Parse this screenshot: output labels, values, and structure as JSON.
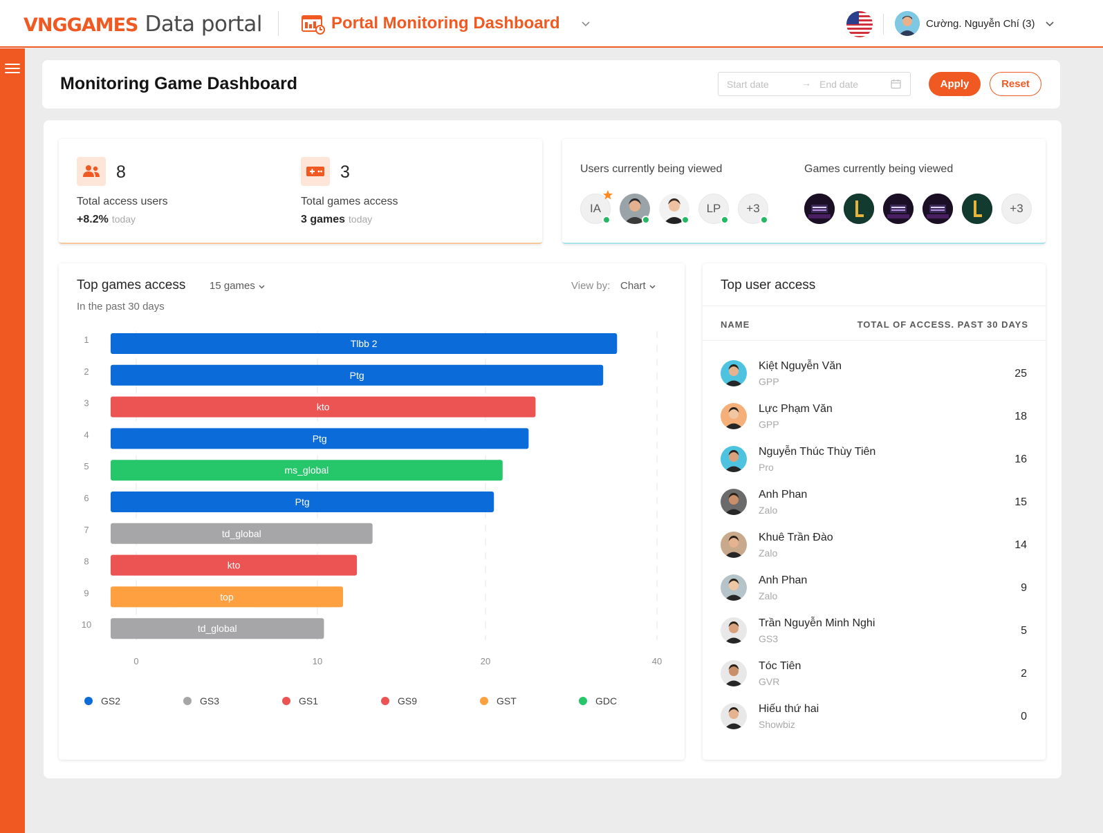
{
  "header": {
    "brand_logo": "VNGGAMES",
    "brand_sub": "Data portal",
    "dashboard_title": "Portal Monitoring Dashboard",
    "user_name": "Cường. Nguyễn Chí (3)"
  },
  "page": {
    "title": "Monitoring Game Dashboard",
    "date_start_placeholder": "Start date",
    "date_end_placeholder": "End date",
    "apply_label": "Apply",
    "reset_label": "Reset"
  },
  "stats": {
    "users": {
      "value": "8",
      "label": "Total access users",
      "sub": "+8.2%",
      "sub_muted": "today"
    },
    "games": {
      "value": "3",
      "label": "Total games access",
      "sub": "3 games",
      "sub_muted": "today"
    }
  },
  "viewing": {
    "users_label": "Users currently being viewed",
    "games_label": "Games currently being viewed",
    "users": [
      {
        "type": "text",
        "text": "IA",
        "online": true,
        "star": true
      },
      {
        "type": "photo",
        "online": true
      },
      {
        "type": "photo",
        "online": true
      },
      {
        "type": "text",
        "text": "LP",
        "online": true
      },
      {
        "type": "text",
        "text": "+3",
        "online": true
      }
    ],
    "games": [
      {
        "type": "game"
      },
      {
        "type": "game-green"
      },
      {
        "type": "game"
      },
      {
        "type": "game"
      },
      {
        "type": "game-green"
      },
      {
        "type": "more",
        "text": "+3"
      }
    ]
  },
  "top_games": {
    "title": "Top games access",
    "filter": "15 games",
    "subtitle": "In the past 30 days",
    "viewby_label": "View by:",
    "viewby_value": "Chart"
  },
  "chart_data": {
    "type": "bar",
    "orientation": "horizontal",
    "categories": [
      "1",
      "2",
      "3",
      "4",
      "5",
      "6",
      "7",
      "8",
      "9",
      "10"
    ],
    "bar_labels": [
      "Tlbb 2",
      "Ptg",
      "kto",
      "Ptg",
      "ms_global",
      "Ptg",
      "td_global",
      "kto",
      "top",
      "td_global"
    ],
    "values": [
      27.7,
      26.9,
      23.0,
      22.6,
      21.1,
      20.6,
      13.6,
      12.7,
      11.9,
      10.8
    ],
    "groups": [
      "GS2",
      "GS2",
      "GS9",
      "GS2",
      "GDC",
      "GS2",
      "GS3",
      "GS1",
      "GST",
      "GS3"
    ],
    "x_ticks": [
      0,
      10,
      20,
      40
    ],
    "xlim": [
      -1.5,
      30
    ],
    "grid": true,
    "legend_position": "bottom",
    "legend": [
      {
        "name": "GS2",
        "color": "#0b6bd8"
      },
      {
        "name": "GS3",
        "color": "#a6a6a8"
      },
      {
        "name": "GS1",
        "color": "#ec5353"
      },
      {
        "name": "GS9",
        "color": "#ec5353"
      },
      {
        "name": "GST",
        "color": "#ffa040"
      },
      {
        "name": "GDC",
        "color": "#26c66b"
      }
    ]
  },
  "top_users": {
    "title": "Top user access",
    "col_name": "NAME",
    "col_total": "TOTAL OF ACCESS. PAST 30 DAYS",
    "rows": [
      {
        "name": "Kiệt Nguyễn Văn",
        "group": "GPP",
        "count": "25",
        "bg": "#4ec3e0"
      },
      {
        "name": "Lực Phạm Văn",
        "group": "GPP",
        "count": "18",
        "bg": "#f5b07a"
      },
      {
        "name": "Nguyễn Thúc Thùy Tiên",
        "group": "Pro",
        "count": "16",
        "bg": "#4ec3e0"
      },
      {
        "name": "Anh Phan",
        "group": "Zalo",
        "count": "15",
        "bg": "#6b6b6b"
      },
      {
        "name": "Khuê Trần Đào",
        "group": "Zalo",
        "count": "14",
        "bg": "#c9a98b"
      },
      {
        "name": "Anh Phan",
        "group": "Zalo",
        "count": "9",
        "bg": "#b5c4c8"
      },
      {
        "name": "Trần Nguyễn Minh Nghi",
        "group": "GS3",
        "count": "5",
        "bg": "#e8e8e8"
      },
      {
        "name": "Tóc Tiên",
        "group": "GVR",
        "count": "2",
        "bg": "#e8e8e8"
      },
      {
        "name": "Hiếu thứ hai",
        "group": "Showbiz",
        "count": "0",
        "bg": "#e8e8e8"
      }
    ]
  },
  "colors": {
    "accent": "#f05a22"
  }
}
